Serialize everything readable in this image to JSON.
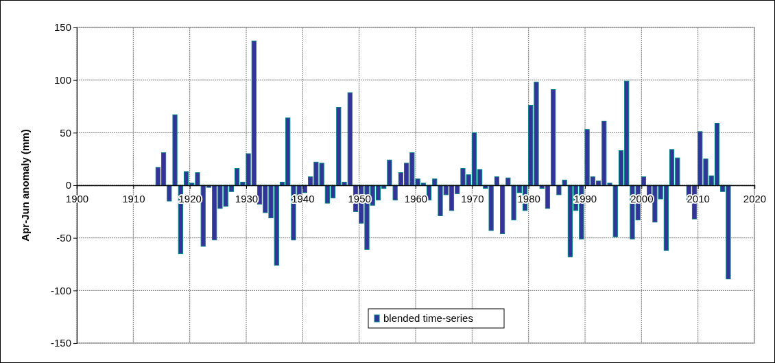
{
  "chart_data": {
    "type": "bar",
    "ylabel": "Apr-Jun anomaly (mm)",
    "x": [
      1914,
      1915,
      1916,
      1917,
      1918,
      1919,
      1920,
      1921,
      1922,
      1923,
      1924,
      1925,
      1926,
      1927,
      1928,
      1929,
      1930,
      1931,
      1932,
      1933,
      1934,
      1935,
      1936,
      1937,
      1938,
      1939,
      1940,
      1941,
      1942,
      1943,
      1944,
      1945,
      1946,
      1947,
      1948,
      1949,
      1950,
      1951,
      1952,
      1953,
      1954,
      1955,
      1956,
      1957,
      1958,
      1959,
      1960,
      1961,
      1962,
      1963,
      1964,
      1965,
      1966,
      1967,
      1968,
      1969,
      1970,
      1971,
      1972,
      1973,
      1974,
      1975,
      1976,
      1977,
      1978,
      1979,
      1980,
      1981,
      1982,
      1983,
      1984,
      1985,
      1986,
      1987,
      1988,
      1989,
      1990,
      1991,
      1992,
      1993,
      1994,
      1995,
      1996,
      1997,
      1998,
      1999,
      2000,
      2001,
      2002,
      2003,
      2004,
      2005,
      2006,
      2008,
      2009,
      2010,
      2011,
      2012,
      2013,
      2014,
      2015
    ],
    "series": [
      {
        "name": "blended time-series",
        "color": "#333399",
        "values": [
          17,
          31,
          -15,
          67,
          -65,
          13,
          2,
          12,
          -58,
          -2,
          -52,
          -22,
          -20,
          -6,
          16,
          3,
          30,
          137,
          -18,
          -26,
          -31,
          -76,
          3,
          64,
          -52,
          -13,
          -7,
          8,
          22,
          21,
          -17,
          -12,
          74,
          3,
          88,
          -25,
          -36,
          -61,
          -19,
          -14,
          -3,
          24,
          -14,
          12,
          21,
          31,
          6,
          2,
          -14,
          6,
          -29,
          -9,
          -24,
          -8,
          16,
          10,
          50,
          15,
          -3,
          -43,
          8,
          -46,
          7,
          -33,
          -7,
          -24,
          76,
          98,
          -3,
          -22,
          91,
          -9,
          5,
          -68,
          -24,
          -51,
          53,
          8,
          4,
          61,
          2,
          -49,
          33,
          99,
          -51,
          -33,
          8,
          -15,
          -35,
          -13,
          -62,
          34,
          26,
          -14,
          -32,
          51,
          25,
          9,
          59,
          -6,
          -89
        ]
      }
    ],
    "xlim": [
      1900,
      2020
    ],
    "xticks": [
      1900,
      1910,
      1920,
      1930,
      1940,
      1950,
      1960,
      1970,
      1980,
      1990,
      2000,
      2010,
      2020
    ],
    "ylim": [
      -150,
      150
    ],
    "yticks": [
      -150,
      -100,
      -50,
      0,
      50,
      100,
      150
    ],
    "grid": true,
    "legend": "bottom"
  }
}
